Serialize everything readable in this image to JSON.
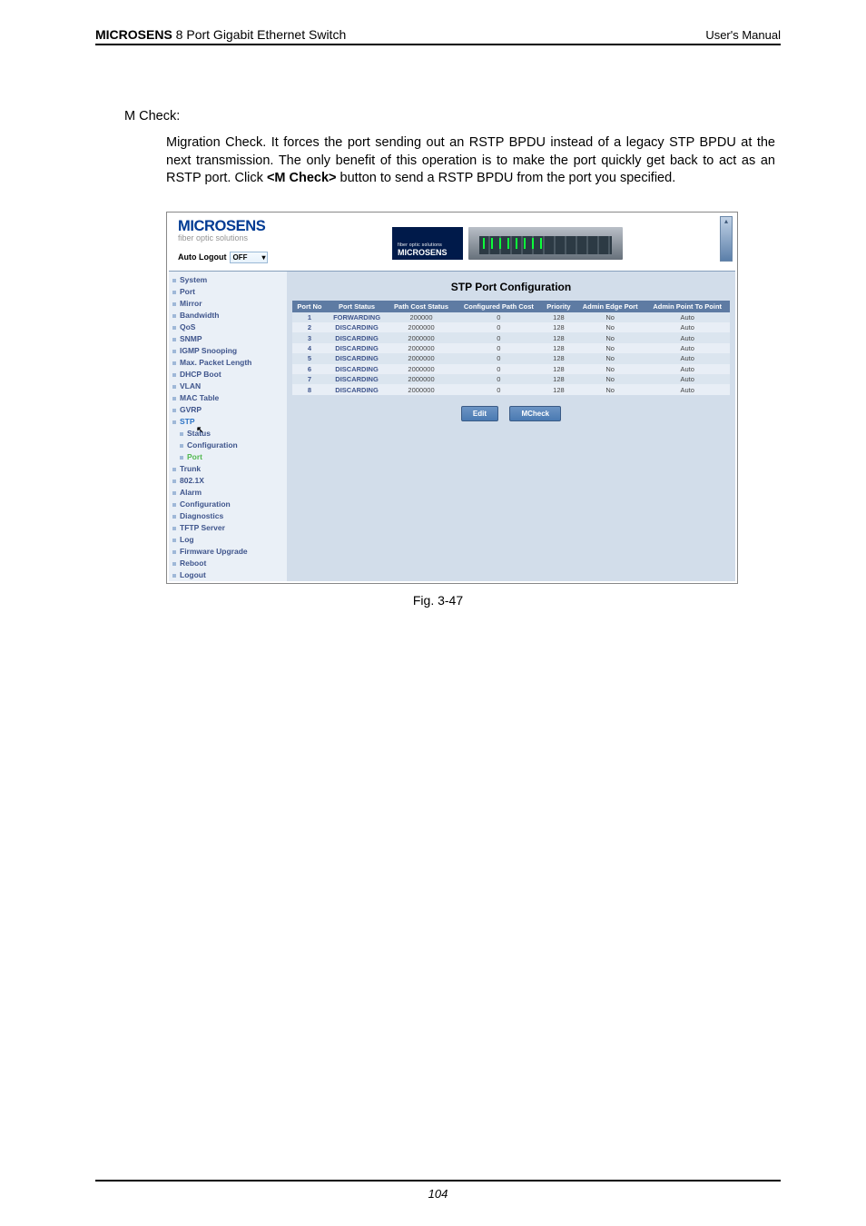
{
  "header": {
    "brand_bold": "MICROSENS",
    "brand_rest": " 8 Port Gigabit Ethernet Switch",
    "right": "User's Manual"
  },
  "section": {
    "label": "M Check:",
    "body_pre": "Migration Check. It forces the port sending out an RSTP BPDU instead of a legacy STP BPDU at the next transmission. The only benefit of this operation is to make the port quickly get back to act as an RSTP port. Click ",
    "body_bold": "<M Check>",
    "body_post": " button to send a RSTP BPDU from the port you specified."
  },
  "screenshot": {
    "brand": "MICROSENS",
    "brand_sub": "fiber optic solutions",
    "auto_logout_label": "Auto Logout",
    "auto_logout_value": "OFF",
    "banner_title": "MICROSENS",
    "banner_sub": "fiber optic solutions",
    "sidebar": [
      {
        "label": "System",
        "type": "item"
      },
      {
        "label": "Port",
        "type": "item"
      },
      {
        "label": "Mirror",
        "type": "item"
      },
      {
        "label": "Bandwidth",
        "type": "item"
      },
      {
        "label": "QoS",
        "type": "item"
      },
      {
        "label": "SNMP",
        "type": "item"
      },
      {
        "label": "IGMP Snooping",
        "type": "item"
      },
      {
        "label": "Max. Packet Length",
        "type": "item"
      },
      {
        "label": "DHCP Boot",
        "type": "item"
      },
      {
        "label": "VLAN",
        "type": "item"
      },
      {
        "label": "MAC Table",
        "type": "item"
      },
      {
        "label": "GVRP",
        "type": "item"
      },
      {
        "label": "STP",
        "type": "group"
      },
      {
        "label": "Status",
        "type": "sub"
      },
      {
        "label": "Configuration",
        "type": "sub"
      },
      {
        "label": "Port",
        "type": "sub-sel"
      },
      {
        "label": "Trunk",
        "type": "item"
      },
      {
        "label": "802.1X",
        "type": "item"
      },
      {
        "label": "Alarm",
        "type": "item"
      },
      {
        "label": "Configuration",
        "type": "item"
      },
      {
        "label": "Diagnostics",
        "type": "item"
      },
      {
        "label": "TFTP Server",
        "type": "item"
      },
      {
        "label": "Log",
        "type": "item"
      },
      {
        "label": "Firmware Upgrade",
        "type": "item"
      },
      {
        "label": "Reboot",
        "type": "item"
      },
      {
        "label": "Logout",
        "type": "item"
      }
    ],
    "main_title": "STP Port Configuration",
    "table": {
      "headers": [
        "Port No",
        "Port Status",
        "Path Cost Status",
        "Configured Path Cost",
        "Priority",
        "Admin Edge Port",
        "Admin Point To Point"
      ],
      "rows": [
        {
          "cells": [
            "1",
            "FORWARDING",
            "200000",
            "0",
            "128",
            "No",
            "Auto"
          ],
          "cls": "rowA"
        },
        {
          "cells": [
            "2",
            "DISCARDING",
            "2000000",
            "0",
            "128",
            "No",
            "Auto"
          ],
          "cls": "rowB"
        },
        {
          "cells": [
            "3",
            "DISCARDING",
            "2000000",
            "0",
            "128",
            "No",
            "Auto"
          ],
          "cls": "rowA"
        },
        {
          "cells": [
            "4",
            "DISCARDING",
            "2000000",
            "0",
            "128",
            "No",
            "Auto"
          ],
          "cls": "rowB"
        },
        {
          "cells": [
            "5",
            "DISCARDING",
            "2000000",
            "0",
            "128",
            "No",
            "Auto"
          ],
          "cls": "rowA"
        },
        {
          "cells": [
            "6",
            "DISCARDING",
            "2000000",
            "0",
            "128",
            "No",
            "Auto"
          ],
          "cls": "rowB"
        },
        {
          "cells": [
            "7",
            "DISCARDING",
            "2000000",
            "0",
            "128",
            "No",
            "Auto"
          ],
          "cls": "rowA"
        },
        {
          "cells": [
            "8",
            "DISCARDING",
            "2000000",
            "0",
            "128",
            "No",
            "Auto"
          ],
          "cls": "rowB"
        }
      ]
    },
    "buttons": {
      "edit": "Edit",
      "mcheck": "MCheck"
    }
  },
  "caption": "Fig. 3-47",
  "footer": {
    "page": "104"
  },
  "colors": {
    "brand_blue": "#003a93",
    "sidebar_bg": "#eaf0f7",
    "main_bg": "#d2ddea",
    "th_bg": "#5e7ba3"
  }
}
